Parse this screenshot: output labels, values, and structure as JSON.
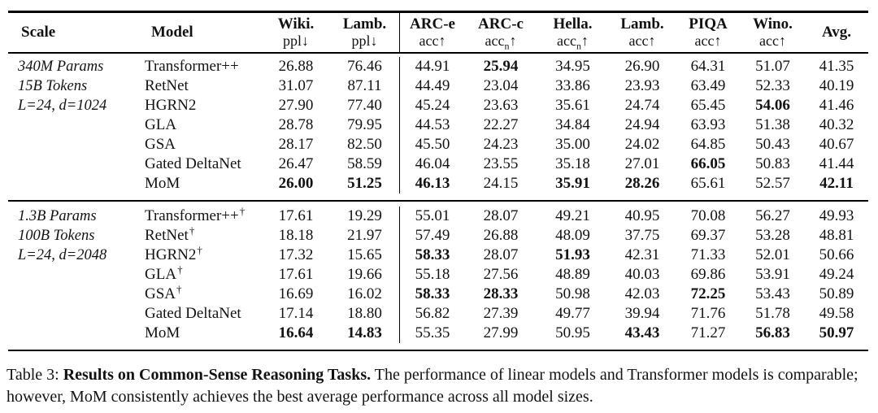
{
  "colors": {
    "text": "#121212",
    "rule": "#000000",
    "background": "#ffffff"
  },
  "table": {
    "dagger_symbol": "†",
    "columns": [
      {
        "id": "scale",
        "label": "Scale",
        "metric": "",
        "metric_sub": "",
        "arrow": "",
        "align": "left",
        "divider": false
      },
      {
        "id": "model",
        "label": "Model",
        "metric": "",
        "metric_sub": "",
        "arrow": "",
        "align": "left",
        "divider": false
      },
      {
        "id": "wiki-ppl",
        "label": "Wiki.",
        "metric": "ppl",
        "metric_sub": "",
        "arrow": "↓",
        "align": "center",
        "divider": false
      },
      {
        "id": "lamb-ppl",
        "label": "Lamb.",
        "metric": "ppl",
        "metric_sub": "",
        "arrow": "↓",
        "align": "center",
        "divider": false
      },
      {
        "id": "arc-e",
        "label": "ARC-e",
        "metric": "acc",
        "metric_sub": "",
        "arrow": "↑",
        "align": "center",
        "divider": true
      },
      {
        "id": "arc-c",
        "label": "ARC-c",
        "metric": "acc",
        "metric_sub": "n",
        "arrow": "↑",
        "align": "center",
        "divider": false
      },
      {
        "id": "hella",
        "label": "Hella.",
        "metric": "acc",
        "metric_sub": "n",
        "arrow": "↑",
        "align": "center",
        "divider": false
      },
      {
        "id": "lamb-acc",
        "label": "Lamb.",
        "metric": "acc",
        "metric_sub": "",
        "arrow": "↑",
        "align": "center",
        "divider": false
      },
      {
        "id": "piqa",
        "label": "PIQA",
        "metric": "acc",
        "metric_sub": "",
        "arrow": "↑",
        "align": "center",
        "divider": false
      },
      {
        "id": "wino",
        "label": "Wino.",
        "metric": "acc",
        "metric_sub": "",
        "arrow": "↑",
        "align": "center",
        "divider": false
      },
      {
        "id": "avg",
        "label": "Avg.",
        "metric": "",
        "metric_sub": "",
        "arrow": "",
        "align": "center",
        "divider": false
      }
    ],
    "groups": [
      {
        "scale_lines": [
          "340M Params",
          "15B Tokens",
          "L=24, d=1024"
        ],
        "rows": [
          {
            "model": "Transformer++",
            "dagger": false,
            "values": [
              "26.88",
              "76.46",
              "44.91",
              "25.94",
              "34.95",
              "26.90",
              "64.31",
              "51.07",
              "41.35"
            ],
            "bold": [
              0,
              0,
              0,
              1,
              0,
              0,
              0,
              0,
              0
            ]
          },
          {
            "model": "RetNet",
            "dagger": false,
            "values": [
              "31.07",
              "87.11",
              "44.49",
              "23.04",
              "33.86",
              "23.93",
              "63.49",
              "52.33",
              "40.19"
            ],
            "bold": [
              0,
              0,
              0,
              0,
              0,
              0,
              0,
              0,
              0
            ]
          },
          {
            "model": "HGRN2",
            "dagger": false,
            "values": [
              "27.90",
              "77.40",
              "45.24",
              "23.63",
              "35.61",
              "24.74",
              "65.45",
              "54.06",
              "41.46"
            ],
            "bold": [
              0,
              0,
              0,
              0,
              0,
              0,
              0,
              1,
              0
            ]
          },
          {
            "model": "GLA",
            "dagger": false,
            "values": [
              "28.78",
              "79.95",
              "44.53",
              "22.27",
              "34.84",
              "24.94",
              "63.93",
              "51.38",
              "40.32"
            ],
            "bold": [
              0,
              0,
              0,
              0,
              0,
              0,
              0,
              0,
              0
            ]
          },
          {
            "model": "GSA",
            "dagger": false,
            "values": [
              "28.17",
              "82.50",
              "45.50",
              "24.23",
              "35.00",
              "24.02",
              "64.85",
              "50.43",
              "40.67"
            ],
            "bold": [
              0,
              0,
              0,
              0,
              0,
              0,
              0,
              0,
              0
            ]
          },
          {
            "model": "Gated DeltaNet",
            "dagger": false,
            "values": [
              "26.47",
              "58.59",
              "46.04",
              "23.55",
              "35.18",
              "27.01",
              "66.05",
              "50.83",
              "41.44"
            ],
            "bold": [
              0,
              0,
              0,
              0,
              0,
              0,
              1,
              0,
              0
            ]
          },
          {
            "model": "MoM",
            "dagger": false,
            "values": [
              "26.00",
              "51.25",
              "46.13",
              "24.15",
              "35.91",
              "28.26",
              "65.61",
              "52.57",
              "42.11"
            ],
            "bold": [
              1,
              1,
              1,
              0,
              1,
              1,
              0,
              0,
              1
            ]
          }
        ]
      },
      {
        "scale_lines": [
          "1.3B Params",
          "100B Tokens",
          "L=24, d=2048"
        ],
        "rows": [
          {
            "model": "Transformer++",
            "dagger": true,
            "values": [
              "17.61",
              "19.29",
              "55.01",
              "28.07",
              "49.21",
              "40.95",
              "70.08",
              "56.27",
              "49.93"
            ],
            "bold": [
              0,
              0,
              0,
              0,
              0,
              0,
              0,
              0,
              0
            ]
          },
          {
            "model": "RetNet",
            "dagger": true,
            "values": [
              "18.18",
              "21.97",
              "57.49",
              "26.88",
              "48.09",
              "37.75",
              "69.37",
              "53.28",
              "48.81"
            ],
            "bold": [
              0,
              0,
              0,
              0,
              0,
              0,
              0,
              0,
              0
            ]
          },
          {
            "model": "HGRN2",
            "dagger": true,
            "values": [
              "17.32",
              "15.65",
              "58.33",
              "28.07",
              "51.93",
              "42.31",
              "71.33",
              "52.01",
              "50.66"
            ],
            "bold": [
              0,
              0,
              1,
              0,
              1,
              0,
              0,
              0,
              0
            ]
          },
          {
            "model": "GLA",
            "dagger": true,
            "values": [
              "17.61",
              "19.66",
              "55.18",
              "27.56",
              "48.89",
              "40.03",
              "69.86",
              "53.91",
              "49.24"
            ],
            "bold": [
              0,
              0,
              0,
              0,
              0,
              0,
              0,
              0,
              0
            ]
          },
          {
            "model": "GSA",
            "dagger": true,
            "values": [
              "16.69",
              "16.02",
              "58.33",
              "28.33",
              "50.98",
              "42.03",
              "72.25",
              "53.43",
              "50.89"
            ],
            "bold": [
              0,
              0,
              1,
              1,
              0,
              0,
              1,
              0,
              0
            ]
          },
          {
            "model": "Gated DeltaNet",
            "dagger": false,
            "values": [
              "17.14",
              "18.80",
              "56.82",
              "27.39",
              "49.77",
              "39.94",
              "71.76",
              "51.78",
              "49.58"
            ],
            "bold": [
              0,
              0,
              0,
              0,
              0,
              0,
              0,
              0,
              0
            ]
          },
          {
            "model": "MoM",
            "dagger": false,
            "values": [
              "16.64",
              "14.83",
              "55.35",
              "27.99",
              "50.95",
              "43.43",
              "71.27",
              "56.83",
              "50.97"
            ],
            "bold": [
              1,
              1,
              0,
              0,
              0,
              1,
              0,
              1,
              1
            ]
          }
        ]
      }
    ]
  },
  "caption": {
    "prefix": "Table 3: ",
    "bold": "Results on Common-Sense Reasoning Tasks.",
    "rest": " The performance of linear models and Transformer models is comparable; however, MoM consistently achieves the best average performance across all model sizes."
  }
}
